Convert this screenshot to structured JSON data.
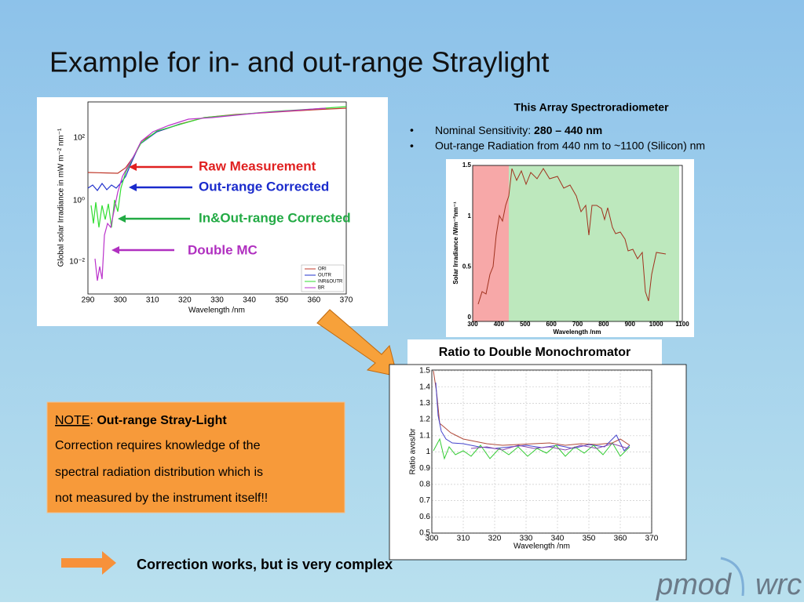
{
  "title": "Example for in- and out-range Straylight",
  "plot1": {
    "ylabel": "Global solar Irradiance in mW m⁻² nm⁻¹",
    "xlabel": "Wavelength /nm",
    "yticks": [
      "10²",
      "10⁰",
      "10⁻²"
    ],
    "xticks": [
      "290",
      "300",
      "310",
      "320",
      "330",
      "340",
      "350",
      "360",
      "370"
    ],
    "legend": [
      "ORI",
      "OUTR",
      "INR&OUTR",
      "BR"
    ]
  },
  "annotations": [
    "Raw Measurement",
    "Out-range Corrected",
    "In&Out-range Corrected",
    "Double MC"
  ],
  "spectro": {
    "heading": "This Array Spectroradiometer",
    "bullets": [
      {
        "text": "Nominal Sensitivity: ",
        "bold": "280 – 440 nm"
      },
      {
        "text": "Out-range Radiation from 440 nm to ~1100 (Silicon) nm"
      }
    ]
  },
  "plot2": {
    "ylabel": "Solar Irradiance /Wm⁻²nm⁻¹",
    "xlabel": "Wavelength /nm",
    "yticks": [
      "0",
      "0.5",
      "1",
      "1.5"
    ],
    "xticks": [
      "300",
      "400",
      "500",
      "600",
      "700",
      "800",
      "900",
      "1000",
      "1100"
    ]
  },
  "ratio": {
    "label": "Ratio to Double Monochromator",
    "ylabel": "Ratio avos/br",
    "xlabel": "Wavelength /nm",
    "yticks": [
      "1.5",
      "1.4",
      "1.3",
      "1.2",
      "1.1",
      "1",
      "0.9",
      "0.8",
      "0.7",
      "0.6",
      "0.5"
    ],
    "xticks": [
      "300",
      "310",
      "320",
      "330",
      "340",
      "350",
      "360",
      "370"
    ]
  },
  "note": {
    "label": "NOTE",
    "sep": ": ",
    "bold": "Out-range Stray-Light",
    "lines": [
      "Correction requires knowledge of the",
      "spectral radiation distribution which is",
      "not measured by the instrument itself!!"
    ]
  },
  "footer": "Correction works, but is very complex",
  "logo": {
    "left": "pmod",
    "right": "wrc"
  }
}
